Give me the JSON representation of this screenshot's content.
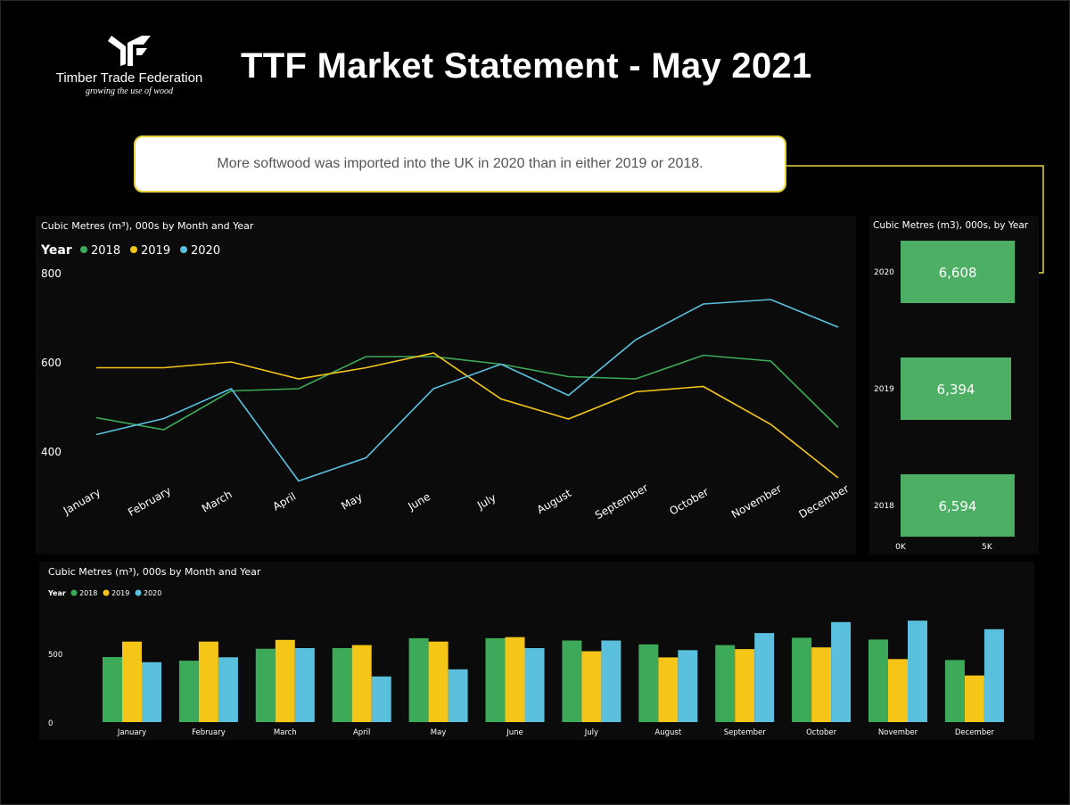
{
  "header": {
    "title": "TTF Market Statement - May 2021",
    "org_name": "Timber Trade Federation",
    "org_tagline": "growing the use of wood"
  },
  "callout": {
    "text": "More softwood was imported into the UK in 2020 than in either 2019 or 2018."
  },
  "colors": {
    "2018": "#3daa5a",
    "2019": "#f5c518",
    "2020": "#5bc0de",
    "green_bar": "#4caf64",
    "callout_border": "#e6d23a"
  },
  "chart_data": [
    {
      "type": "line",
      "title": "Cubic Metres (m³), 000s by Month and Year",
      "legend_title": "Year",
      "legend_position": "top-left",
      "categories": [
        "January",
        "February",
        "March",
        "April",
        "May",
        "June",
        "July",
        "August",
        "September",
        "October",
        "November",
        "December"
      ],
      "series": [
        {
          "name": "2018",
          "values": [
            475,
            448,
            535,
            540,
            612,
            612,
            595,
            567,
            562,
            615,
            602,
            453
          ]
        },
        {
          "name": "2019",
          "values": [
            587,
            587,
            600,
            562,
            587,
            620,
            517,
            472,
            533,
            545,
            460,
            340
          ]
        },
        {
          "name": "2020",
          "values": [
            437,
            473,
            540,
            333,
            385,
            540,
            595,
            525,
            650,
            730,
            740,
            678
          ]
        }
      ],
      "yticks": [
        400,
        600,
        800
      ],
      "ylim": [
        320,
        800
      ],
      "grid": false
    },
    {
      "type": "bar",
      "orientation": "horizontal",
      "title": "Cubic Metres (m3), 000s, by Year",
      "categories": [
        "2020",
        "2019",
        "2018"
      ],
      "values": [
        6608,
        6394,
        6594
      ],
      "value_labels": [
        "6,608",
        "6,394",
        "6,594"
      ],
      "xticks": [
        "0K",
        "5K"
      ],
      "grid": false
    },
    {
      "type": "bar",
      "title": "Cubic Metres (m³), 000s by Month and Year",
      "legend_title": "Year",
      "legend_position": "top-left",
      "categories": [
        "January",
        "February",
        "March",
        "April",
        "May",
        "June",
        "July",
        "August",
        "September",
        "October",
        "November",
        "December"
      ],
      "series": [
        {
          "name": "2018",
          "values": [
            475,
            448,
            535,
            540,
            612,
            612,
            595,
            567,
            562,
            615,
            602,
            453
          ]
        },
        {
          "name": "2019",
          "values": [
            587,
            587,
            600,
            562,
            587,
            620,
            517,
            472,
            533,
            545,
            460,
            340
          ]
        },
        {
          "name": "2020",
          "values": [
            437,
            473,
            540,
            333,
            385,
            540,
            595,
            525,
            650,
            730,
            740,
            678
          ]
        }
      ],
      "yticks": [
        0,
        500
      ],
      "ylim": [
        0,
        800
      ],
      "grid": false
    }
  ]
}
